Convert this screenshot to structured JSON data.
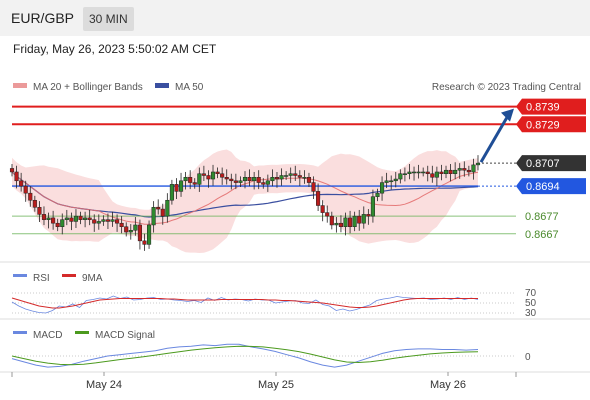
{
  "header": {
    "pair": "EUR/GBP",
    "timeframe": "30 MIN"
  },
  "timestamp": "Friday, May 26, 2023 5:50:02 AM CET",
  "legend": {
    "ma20": "MA 20 + Bollinger Bands",
    "ma50": "MA 50",
    "credit": "Research © 2023 Trading Central",
    "rsi": "RSI",
    "rsi_ma": "9MA",
    "macd": "MACD",
    "macd_signal": "MACD Signal"
  },
  "colors": {
    "resistance": "#e01e1e",
    "support": "#6cb35a",
    "current": "#333333",
    "pivot": "#2257e0",
    "ma20": "#e36f6f",
    "ma50": "#3a4fa0",
    "bands": "#f9d6d6",
    "candle_up": "#2f8a2f",
    "candle_down": "#b81c1c",
    "rsi": "#6a88e0",
    "rsi_ma": "#d42a2a",
    "macd": "#6a88e0",
    "macd_signal": "#4c9a1e",
    "arrow": "#1f4e96"
  },
  "chart_data": [
    {
      "type": "candlestick",
      "title": "EUR/GBP 30 MIN",
      "x_ticks": [
        "May 24",
        "May 25",
        "May 26"
      ],
      "ylim": [
        0.8655,
        0.8745
      ],
      "levels": [
        {
          "value": 0.8739,
          "label": "0.8739",
          "kind": "resistance"
        },
        {
          "value": 0.8729,
          "label": "0.8729",
          "kind": "resistance"
        },
        {
          "value": 0.8707,
          "label": "0.8707",
          "kind": "current"
        },
        {
          "value": 0.8694,
          "label": "0.8694",
          "kind": "pivot"
        },
        {
          "value": 0.8677,
          "label": "0.8677",
          "kind": "support"
        },
        {
          "value": 0.8667,
          "label": "0.8667",
          "kind": "support"
        }
      ],
      "close_series": [
        0.8702,
        0.8697,
        0.8694,
        0.869,
        0.8686,
        0.8682,
        0.8678,
        0.8675,
        0.8676,
        0.8673,
        0.8671,
        0.8675,
        0.8676,
        0.8674,
        0.8677,
        0.8675,
        0.8676,
        0.8675,
        0.8673,
        0.8674,
        0.8675,
        0.8674,
        0.8675,
        0.8673,
        0.8671,
        0.8668,
        0.8669,
        0.8672,
        0.8663,
        0.8661,
        0.8672,
        0.8682,
        0.8681,
        0.8677,
        0.8686,
        0.8695,
        0.8691,
        0.8697,
        0.8699,
        0.8696,
        0.8695,
        0.8701,
        0.87,
        0.8698,
        0.8702,
        0.8701,
        0.8699,
        0.8698,
        0.8697,
        0.8696,
        0.8697,
        0.8699,
        0.8697,
        0.8699,
        0.8696,
        0.8695,
        0.8697,
        0.8699,
        0.8698,
        0.87,
        0.87,
        0.8701,
        0.87,
        0.8699,
        0.8699,
        0.8696,
        0.8691,
        0.8683,
        0.8679,
        0.8677,
        0.8672,
        0.8673,
        0.8671,
        0.8676,
        0.8671,
        0.8677,
        0.8673,
        0.8678,
        0.8677,
        0.8688,
        0.869,
        0.8696,
        0.8697,
        0.8697,
        0.8698,
        0.8701,
        0.8701,
        0.8702,
        0.8702,
        0.8702,
        0.8702,
        0.8701,
        0.8699,
        0.8702,
        0.8701,
        0.8703,
        0.8701,
        0.8703,
        0.8704,
        0.8703,
        0.8702,
        0.8706,
        0.8707
      ],
      "arrow": {
        "from": 0.8707,
        "to": 0.8739
      }
    },
    {
      "type": "line",
      "title": "RSI",
      "y_ticks": [
        70,
        50,
        30
      ],
      "series": [
        {
          "name": "RSI",
          "values": [
            52,
            44,
            38,
            34,
            31,
            30,
            35,
            44,
            42,
            48,
            41,
            55,
            57,
            60,
            58,
            64,
            59,
            62,
            56,
            57,
            60,
            61,
            57,
            58,
            56,
            55,
            53,
            55,
            51,
            60,
            55,
            61,
            56,
            58,
            57,
            54,
            58,
            56,
            56,
            50,
            52,
            54,
            55,
            50,
            49,
            56,
            47,
            44,
            35,
            38,
            34,
            37,
            42,
            46,
            55,
            58,
            60,
            63,
            61,
            60,
            59,
            60,
            57,
            58,
            60,
            57,
            61,
            57,
            60,
            57
          ]
        },
        {
          "name": "9MA",
          "values": [
            60,
            56,
            52,
            48,
            44,
            42,
            40,
            40,
            42,
            44,
            47,
            50,
            53,
            56,
            57,
            58,
            59,
            59,
            59,
            59,
            59,
            59,
            59,
            58,
            58,
            57,
            56,
            56,
            56,
            56,
            56,
            57,
            57,
            57,
            57,
            57,
            57,
            57,
            56,
            56,
            55,
            55,
            54,
            53,
            52,
            51,
            50,
            48,
            46,
            44,
            42,
            41,
            41,
            42,
            44,
            47,
            50,
            53,
            56,
            58,
            59,
            59,
            59,
            59,
            59,
            59,
            59,
            59,
            59,
            59
          ]
        }
      ]
    },
    {
      "type": "line",
      "title": "MACD",
      "y_ticks": [
        0
      ],
      "series": [
        {
          "name": "MACD",
          "values": [
            -2,
            -4.5,
            -7,
            -8.5,
            -8,
            -6.5,
            -4,
            -2,
            0,
            1,
            2,
            3,
            4,
            6,
            7,
            7.5,
            8.5,
            8,
            9,
            9,
            7,
            5.5,
            3.5,
            1,
            -1.5,
            -4.5,
            -7,
            -8.5,
            -7,
            -4,
            -1,
            2,
            4,
            5,
            5.5,
            5.5,
            5,
            5,
            4.5,
            5
          ]
        },
        {
          "name": "MACD Signal",
          "values": [
            0,
            -2,
            -4,
            -5.5,
            -6.5,
            -6.8,
            -6.3,
            -5.3,
            -4,
            -2.8,
            -1.7,
            -0.6,
            0.7,
            2,
            3.3,
            4.5,
            5.5,
            6.3,
            7,
            7.5,
            7.4,
            7,
            6,
            4.8,
            3.4,
            1.5,
            -0.8,
            -3,
            -4.6,
            -5,
            -4.4,
            -3.2,
            -1.8,
            -0.5,
            0.6,
            1.6,
            2.3,
            2.8,
            3.1,
            3.3
          ]
        }
      ]
    }
  ]
}
